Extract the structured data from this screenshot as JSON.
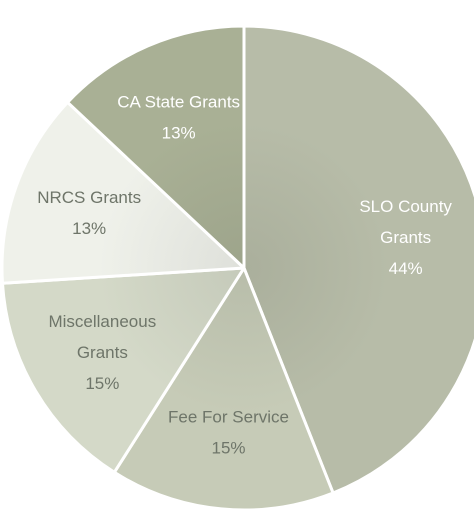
{
  "chart_data": {
    "type": "pie",
    "title": "",
    "start_angle_deg": 0,
    "direction": "clockwise",
    "slices": [
      {
        "label_lines": [
          "SLO County",
          "Grants"
        ],
        "percent_label": "44%",
        "value": 44,
        "color": "#b7bca8",
        "text_color": "#ffffff"
      },
      {
        "label_lines": [
          "Fee For Service"
        ],
        "percent_label": "15%",
        "value": 15,
        "color": "#c6cbb7",
        "text_color": "#6e7569"
      },
      {
        "label_lines": [
          "Miscellaneous",
          "Grants"
        ],
        "percent_label": "15%",
        "value": 15,
        "color": "#d4d9c8",
        "text_color": "#6e7569"
      },
      {
        "label_lines": [
          "NRCS Grants"
        ],
        "percent_label": "13%",
        "value": 13,
        "color": "#eff1ea",
        "text_color": "#6e7569"
      },
      {
        "label_lines": [
          "CA State Grants"
        ],
        "percent_label": "13%",
        "value": 13,
        "color": "#a9b095",
        "text_color": "#ffffff"
      }
    ],
    "border_color": "#ffffff"
  }
}
